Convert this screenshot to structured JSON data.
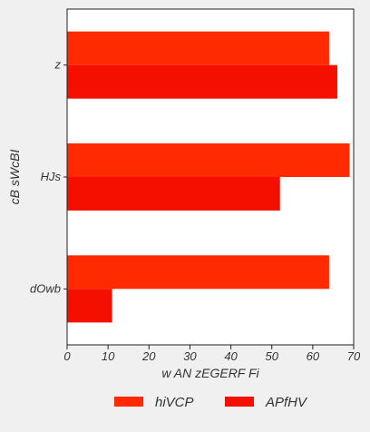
{
  "chart_data": {
    "type": "bar",
    "orientation": "horizontal",
    "categories": [
      "z",
      "HJs",
      "dOwb"
    ],
    "series": [
      {
        "name": "hiVCP",
        "color": "#ff2a00",
        "values": [
          64,
          69,
          64
        ]
      },
      {
        "name": "APfHV",
        "color": "#f50f00",
        "values": [
          66,
          52,
          11
        ]
      }
    ],
    "xlabel": "w AN zEGERF Fi",
    "ylabel": "cB sWcBI",
    "xlim": [
      0,
      70
    ],
    "xticks": [
      0,
      10,
      20,
      30,
      40,
      50,
      60,
      70
    ],
    "grid": false,
    "legend_position": "bottom-center",
    "background": "#f0f0f0",
    "plot_background": "#ffffff"
  }
}
